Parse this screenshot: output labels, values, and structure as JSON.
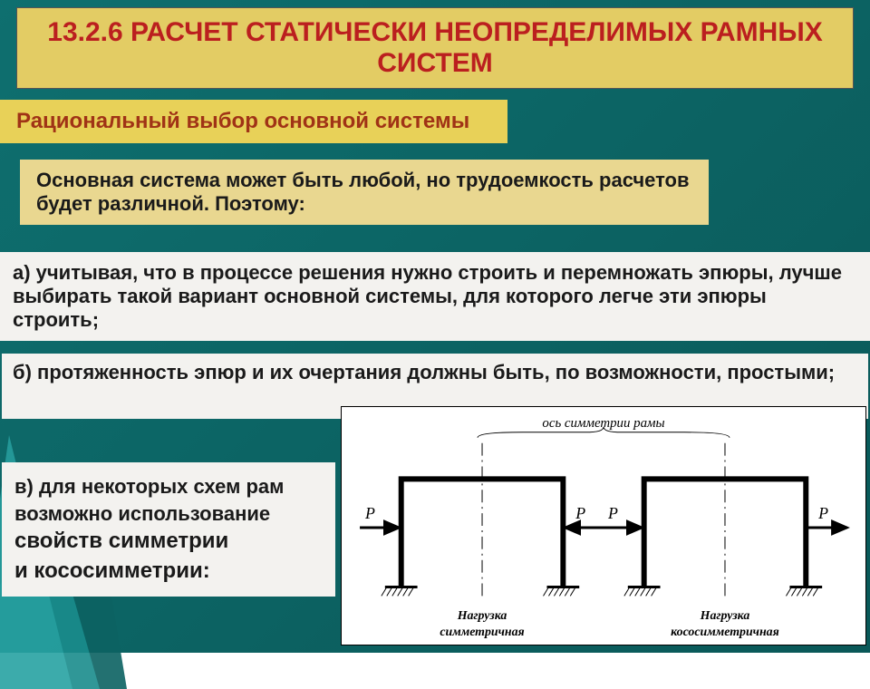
{
  "colors": {
    "bg_teal": "#0e6f6f",
    "bg_teal_dark": "#0a5858",
    "title_bg": "#e3cc64",
    "subtitle_bg": "#e8d158",
    "intro_bg": "#e9d790",
    "note_a_bg": "#f3f2ef",
    "note_b_bg": "#f3f2ef",
    "note_c_bg": "#f3f2ef",
    "title_color": "#bb1f1f",
    "subtitle_color": "#a03316",
    "text_color": "#1a1a1a",
    "deco_teal_light": "#2aa6a6",
    "deco_teal_mid": "#1a8c8c",
    "deco_teal_dark": "#0c6262"
  },
  "typography": {
    "title_fontsize": 30,
    "subtitle_fontsize": 24,
    "intro_fontsize": 22,
    "note_fontsize": 22,
    "note_c_big_fontsize": 24,
    "diagram_label_fontsize": 14,
    "diagram_caption_fontsize": 14
  },
  "title": "13.2.6 РАСЧЕТ СТАТИЧЕСКИ НЕОПРЕДЕЛИМЫХ РАМНЫХ СИСТЕМ",
  "subtitle": "Рациональный выбор основной системы",
  "intro": "Основная система может быть любой, но трудоемкость расчетов будет различной. Поэтому:",
  "note_a": "а) учитывая, что в процессе решения нужно строить и перемножать эпюры, лучше выбирать такой вариант основной системы, для которого легче эти эпюры строить;",
  "note_b": "б) протяженность эпюр и их очертания должны быть, по возможности, простыми;",
  "note_c_line1": "в) для некоторых схем рам возможно использование",
  "note_c_line2": "свойств симметрии",
  "note_c_line3": "и кососимметрии",
  "note_c_colon": ":",
  "diagram": {
    "axis_label": "ось симметрии рамы",
    "frames": [
      {
        "caption": "Нагрузка симметричная",
        "left_arrow_dir": "right",
        "right_arrow_dir": "left",
        "force_label_left": "P",
        "force_label_right": "P"
      },
      {
        "caption": "Нагрузка кососимметричная",
        "left_arrow_dir": "right",
        "right_arrow_dir": "right",
        "force_label_left": "P",
        "force_label_right": "P"
      }
    ],
    "frame_stroke": "#000000",
    "frame_line_width": 6,
    "axis_line_width": 1,
    "arrow_line_width": 3
  }
}
